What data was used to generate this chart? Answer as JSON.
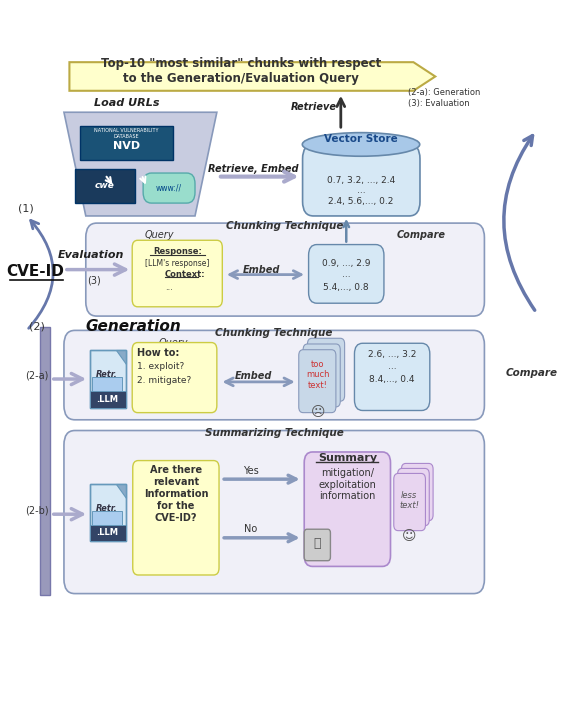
{
  "bg_color": "#ffffff",
  "title_text": "Top-10 \"most similar\" chunks with respect\nto the Generation/Evaluation Query",
  "load_urls_label": "Load URLs",
  "retrieve_label": "Retrieve",
  "retrieve_embed_label": "Retrieve, Embed",
  "vector_store_label": "Vector Store",
  "vector_store_data1": "0.7, 3.2, ..., 2.4",
  "vector_store_data2": "...",
  "vector_store_data3": "2.4, 5.6,..., 0.2",
  "chunking_label1": "Chunking Technique",
  "query_label1": "Query",
  "compare_label1": "Compare",
  "embed_label1": "Embed",
  "evaluation_label": "Evaluation",
  "step3_label": "(3)",
  "cve_id_label": "CVE-ID",
  "step1_label": "(1)",
  "step2_label": "(2)",
  "generation_label": "Generation",
  "chunking_label2": "Chunking Technique",
  "query_label2": "Query",
  "embed_label2": "Embed",
  "too_much_text": "too\nmuch\ntext!",
  "compare_label2": "Compare",
  "summarizing_label": "Summarizing Technique",
  "yes_label": "Yes",
  "no_label": "No",
  "step2a_label": "(2-a)",
  "step2b_label": "(2-b)",
  "retrieve_2a_label": "(2-a): Generation",
  "retrieve_3_label": "(3): Evaluation",
  "retr_label": "Retr.",
  "llm_label": ".LLM",
  "light_blue": "#d6e8f5",
  "light_yellow": "#ffffcc",
  "light_purple": "#e8d5f0",
  "box_border": "#6688aa",
  "chevron_color": "#ffffcc",
  "chevron_border": "#bbaa44"
}
